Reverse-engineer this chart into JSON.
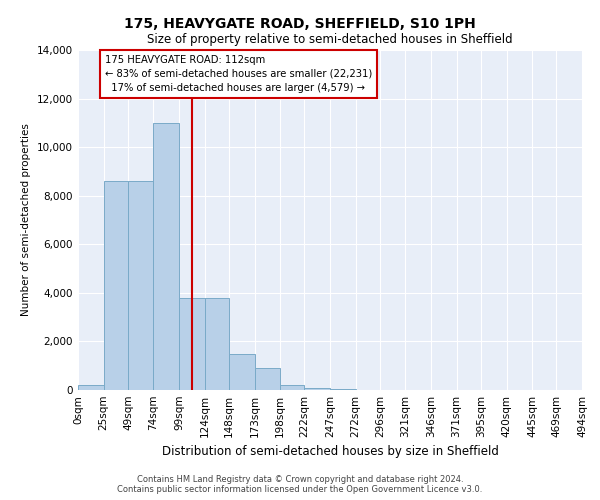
{
  "title": "175, HEAVYGATE ROAD, SHEFFIELD, S10 1PH",
  "subtitle": "Size of property relative to semi-detached houses in Sheffield",
  "xlabel": "Distribution of semi-detached houses by size in Sheffield",
  "ylabel": "Number of semi-detached properties",
  "property_label": "175 HEAVYGATE ROAD: 112sqm",
  "pct_smaller": 83,
  "count_smaller": 22231,
  "pct_larger": 17,
  "count_larger": 4579,
  "bin_edges": [
    0,
    25,
    49,
    74,
    99,
    124,
    148,
    173,
    198,
    222,
    247,
    272,
    296,
    321,
    346,
    371,
    395,
    420,
    445,
    469,
    494
  ],
  "bin_labels": [
    "0sqm",
    "25sqm",
    "49sqm",
    "74sqm",
    "99sqm",
    "124sqm",
    "148sqm",
    "173sqm",
    "198sqm",
    "222sqm",
    "247sqm",
    "272sqm",
    "296sqm",
    "321sqm",
    "346sqm",
    "371sqm",
    "395sqm",
    "420sqm",
    "445sqm",
    "469sqm",
    "494sqm"
  ],
  "bar_heights": [
    200,
    8600,
    8600,
    11000,
    3800,
    3800,
    1500,
    900,
    200,
    100,
    50,
    0,
    0,
    0,
    0,
    0,
    0,
    0,
    0,
    0
  ],
  "bar_color": "#b8d0e8",
  "bar_edge_color": "#7aaac8",
  "vline_x": 112,
  "vline_color": "#cc0000",
  "annotation_box_color": "#cc0000",
  "ylim": [
    0,
    14000
  ],
  "yticks": [
    0,
    2000,
    4000,
    6000,
    8000,
    10000,
    12000,
    14000
  ],
  "background_color": "#e8eef8",
  "grid_color": "#ffffff",
  "footer_line1": "Contains HM Land Registry data © Crown copyright and database right 2024.",
  "footer_line2": "Contains public sector information licensed under the Open Government Licence v3.0."
}
